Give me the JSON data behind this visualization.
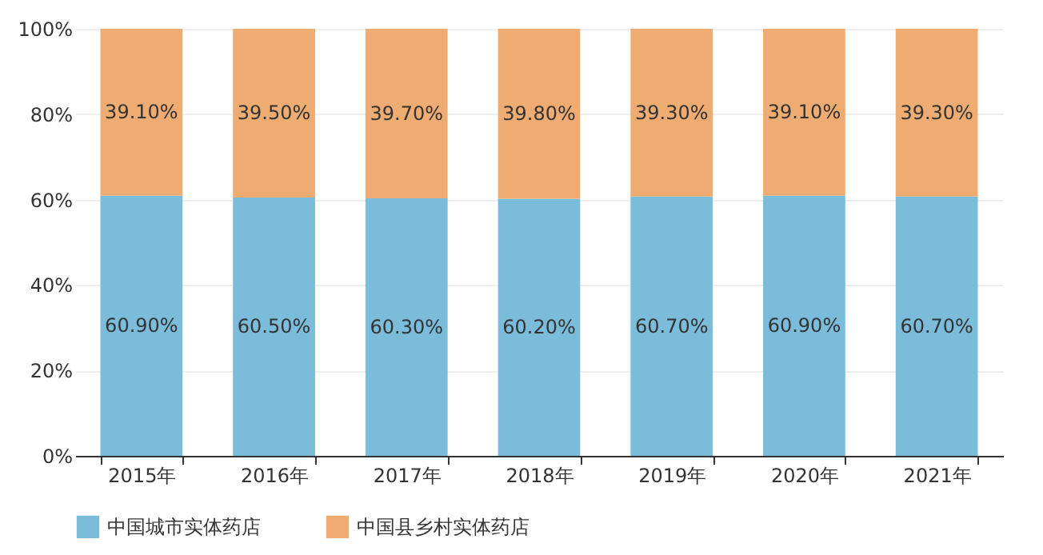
{
  "chart_data": {
    "type": "bar",
    "stacked": true,
    "categories": [
      "2015年",
      "2016年",
      "2017年",
      "2018年",
      "2019年",
      "2020年",
      "2021年"
    ],
    "series": [
      {
        "name": "中国城市实体药店",
        "color": "#7bbcdb",
        "values": [
          60.9,
          60.5,
          60.3,
          60.2,
          60.7,
          60.9,
          60.7
        ],
        "value_labels": [
          "60.90%",
          "60.50%",
          "60.30%",
          "60.20%",
          "60.70%",
          "60.90%",
          "60.70%"
        ]
      },
      {
        "name": "中国县乡村实体药店",
        "color": "#eeab72",
        "values": [
          39.1,
          39.5,
          39.7,
          39.8,
          39.3,
          39.1,
          39.3
        ],
        "value_labels": [
          "39.10%",
          "39.50%",
          "39.70%",
          "39.80%",
          "39.30%",
          "39.10%",
          "39.30%"
        ]
      }
    ],
    "ylim": [
      0,
      100
    ],
    "yticks": [
      {
        "value": 0,
        "label": "0%"
      },
      {
        "value": 20,
        "label": "20%"
      },
      {
        "value": 40,
        "label": "40%"
      },
      {
        "value": 60,
        "label": "60%"
      },
      {
        "value": 80,
        "label": "80%"
      },
      {
        "value": 100,
        "label": "100%"
      }
    ],
    "grid": "y",
    "legend": "bottom"
  }
}
